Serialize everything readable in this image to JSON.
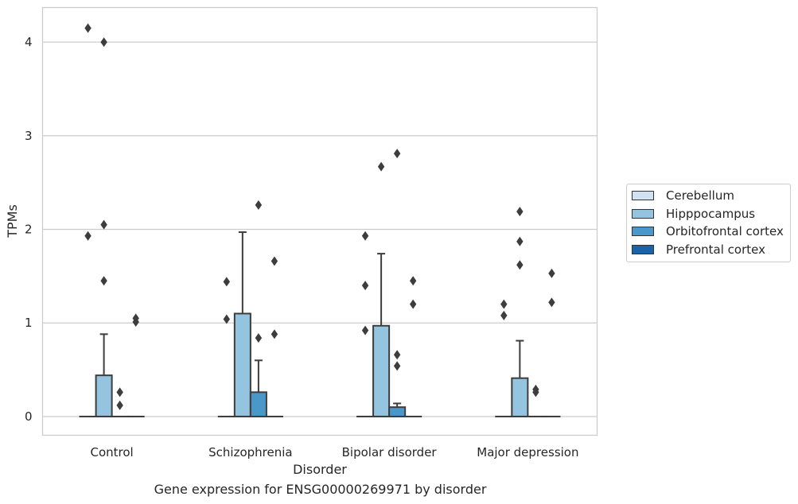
{
  "chart_data": {
    "type": "box",
    "caption": "Gene expression for ENSG00000269971 by disorder",
    "xlabel": "Disorder",
    "ylabel": "TPMs",
    "ylim": [
      -0.2,
      4.37
    ],
    "yticks": [
      0,
      1,
      2,
      3,
      4
    ],
    "grid": "horizontal",
    "legend_position": "center-right",
    "categories": [
      "Control",
      "Schizophrenia",
      "Bipolar disorder",
      "Major depression"
    ],
    "series": [
      {
        "name": "Cerebellum",
        "color": "#d0e1f2",
        "boxes": [
          {
            "q1": 0,
            "median": 0,
            "q3": 0,
            "whisker_low": 0,
            "whisker_high": 0,
            "outliers": []
          },
          {
            "q1": 0,
            "median": 0,
            "q3": 0,
            "whisker_low": 0,
            "whisker_high": 0,
            "outliers": []
          },
          {
            "q1": 0,
            "median": 0,
            "q3": 0,
            "whisker_low": 0,
            "whisker_high": 0,
            "outliers": []
          },
          {
            "q1": 0,
            "median": 0,
            "q3": 0,
            "whisker_low": 0,
            "whisker_high": 0,
            "outliers": []
          }
        ]
      },
      {
        "name": "Hipppocampus",
        "color": "#94c4df",
        "boxes": [
          {
            "q1": 0,
            "median": 0,
            "q3": 0.44,
            "whisker_low": 0,
            "whisker_high": 0.88,
            "outliers": [
              1.45,
              2.05,
              4.0
            ]
          },
          {
            "q1": 0,
            "median": 0,
            "q3": 1.1,
            "whisker_low": 0,
            "whisker_high": 1.97,
            "outliers": []
          },
          {
            "q1": 0,
            "median": 0,
            "q3": 0.97,
            "whisker_low": 0,
            "whisker_high": 1.74,
            "outliers": [
              2.67
            ]
          },
          {
            "q1": 0,
            "median": 0,
            "q3": 0.41,
            "whisker_low": 0,
            "whisker_high": 0.81,
            "outliers": [
              1.62,
              1.87,
              2.19
            ]
          }
        ]
      },
      {
        "name": "Orbitofrontal cortex",
        "color": "#4a98c9",
        "boxes": [
          {
            "q1": 0,
            "median": 0,
            "q3": 0,
            "whisker_low": 0,
            "whisker_high": 0,
            "outliers": [
              0.12,
              0.26
            ]
          },
          {
            "q1": 0,
            "median": 0,
            "q3": 0.26,
            "whisker_low": 0,
            "whisker_high": 0.6,
            "outliers": [
              0.84,
              2.26
            ]
          },
          {
            "q1": 0,
            "median": 0,
            "q3": 0.1,
            "whisker_low": 0,
            "whisker_high": 0.14,
            "outliers": [
              0.54,
              0.66,
              2.81
            ]
          },
          {
            "q1": 0,
            "median": 0,
            "q3": 0,
            "whisker_low": 0,
            "whisker_high": 0,
            "outliers": [
              0.26,
              0.29
            ]
          }
        ]
      },
      {
        "name": "Prefrontal cortex",
        "color": "#1764ab",
        "boxes": [
          {
            "q1": 0,
            "median": 0,
            "q3": 0,
            "whisker_low": 0,
            "whisker_high": 0,
            "outliers": [
              1.01,
              1.05
            ]
          },
          {
            "q1": 0,
            "median": 0,
            "q3": 0,
            "whisker_low": 0,
            "whisker_high": 0,
            "outliers": [
              0.88,
              1.66
            ]
          },
          {
            "q1": 0,
            "median": 0,
            "q3": 0,
            "whisker_low": 0,
            "whisker_high": 0,
            "outliers": [
              1.2,
              1.45
            ]
          },
          {
            "q1": 0,
            "median": 0,
            "q3": 0,
            "whisker_low": 0,
            "whisker_high": 0,
            "outliers": [
              1.22,
              1.53
            ]
          }
        ]
      }
    ],
    "base_outliers": [
      {
        "category": 0,
        "values": [
          1.93,
          4.15
        ]
      },
      {
        "category": 1,
        "values": [
          1.04,
          1.44
        ]
      },
      {
        "category": 2,
        "values": [
          0.92,
          1.4,
          1.93
        ]
      },
      {
        "category": 3,
        "values": [
          1.08,
          1.2
        ]
      }
    ]
  }
}
